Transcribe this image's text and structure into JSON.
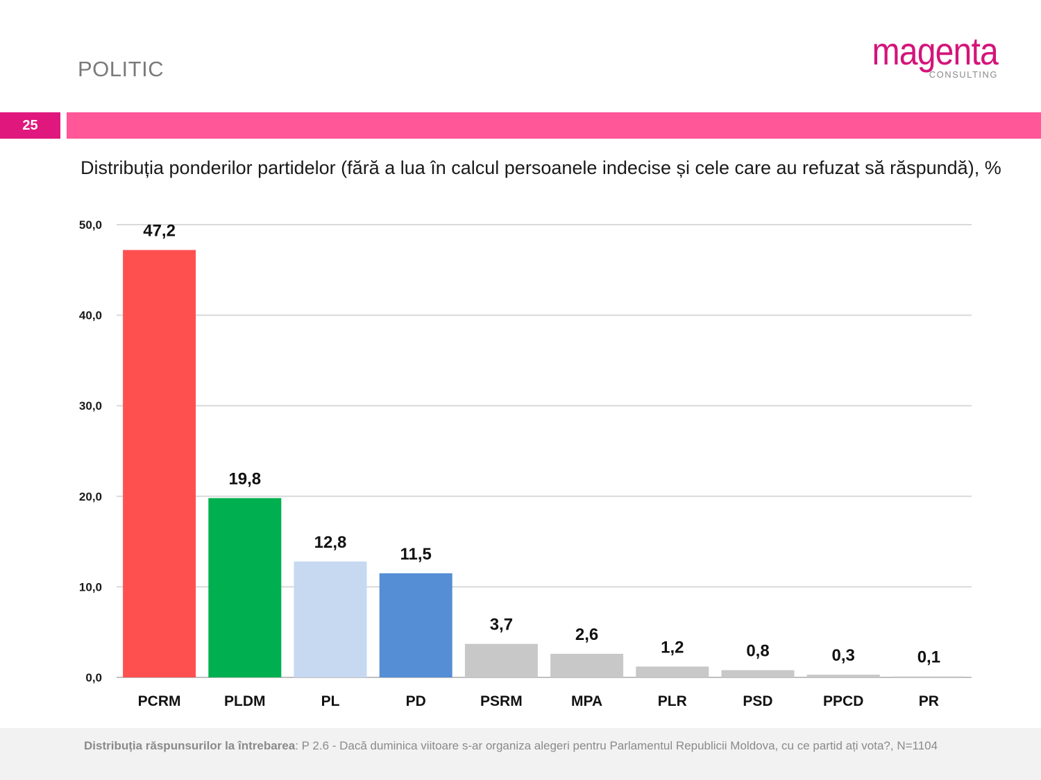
{
  "header": {
    "section": "POLITIC",
    "logo_word": "magenta",
    "logo_sub": "CONSULTING",
    "page_number": "25",
    "colors": {
      "accent": "#e0177d",
      "band": "#ff5797",
      "logo": "#d4147a"
    }
  },
  "chart_title": "Distribuția ponderilor partidelor (fără a lua în calcul persoanele indecise și cele care au refuzat să răspundă), %",
  "chart_data": {
    "type": "bar",
    "title": "Distribuția ponderilor partidelor (fără a lua în calcul persoanele indecise și cele care au refuzat să răspundă), %",
    "xlabel": "",
    "ylabel": "",
    "ylim": [
      0,
      50
    ],
    "yticks": [
      0,
      10,
      20,
      30,
      40,
      50
    ],
    "ytick_labels": [
      "0,0",
      "10,0",
      "20,0",
      "30,0",
      "40,0",
      "50,0"
    ],
    "grid": true,
    "categories": [
      "PCRM",
      "PLDM",
      "PL",
      "PD",
      "PSRM",
      "MPA",
      "PLR",
      "PSD",
      "PPCD",
      "PR"
    ],
    "values": [
      47.2,
      19.8,
      12.8,
      11.5,
      3.7,
      2.6,
      1.2,
      0.8,
      0.3,
      0.1
    ],
    "value_labels": [
      "47,2",
      "19,8",
      "12,8",
      "11,5",
      "3,7",
      "2,6",
      "1,2",
      "0,8",
      "0,3",
      "0,1"
    ],
    "colors": [
      "#ff5050",
      "#00b050",
      "#c6d9f1",
      "#558ed5",
      "#c8c8c8",
      "#c8c8c8",
      "#c8c8c8",
      "#c8c8c8",
      "#c8c8c8",
      "#c8c8c8"
    ]
  },
  "footer": {
    "label": "Distribuția răspunsurilor la întrebarea",
    "text": ": P 2.6 - Dacă duminica viitoare s-ar organiza alegeri pentru Parlamentul Republicii Moldova, cu ce partid ați vota?, N=1104"
  }
}
